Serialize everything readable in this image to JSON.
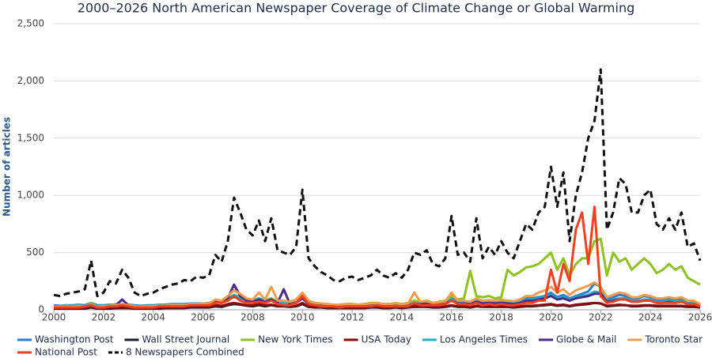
{
  "chart_data": {
    "type": "line",
    "title": "2000–2026 North American Newspaper Coverage of Climate Change or Global Warming",
    "y_label": "Number of articles",
    "xlim": [
      2000,
      2026
    ],
    "xticks": [
      2000,
      2002,
      2004,
      2006,
      2008,
      2010,
      2012,
      2014,
      2016,
      2018,
      2020,
      2022,
      2024,
      2026
    ],
    "ylim": [
      0,
      2500
    ],
    "yticks": [
      0,
      500,
      {
        "value": 1000,
        "label": "1,000"
      },
      {
        "value": 1500,
        "label": "1,500"
      },
      {
        "value": 2000,
        "label": "2,000"
      },
      {
        "value": 2500,
        "label": "2,500"
      }
    ],
    "grid": true,
    "legend": "bottom",
    "x": [
      2000,
      2000.25,
      2000.5,
      2000.75,
      2001,
      2001.25,
      2001.5,
      2001.75,
      2002,
      2002.25,
      2002.5,
      2002.75,
      2003,
      2003.25,
      2003.5,
      2003.75,
      2004,
      2004.25,
      2004.5,
      2004.75,
      2005,
      2005.25,
      2005.5,
      2005.75,
      2006,
      2006.25,
      2006.5,
      2006.75,
      2007,
      2007.25,
      2007.5,
      2007.75,
      2008,
      2008.25,
      2008.5,
      2008.75,
      2009,
      2009.25,
      2009.5,
      2009.75,
      2010,
      2010.25,
      2010.5,
      2010.75,
      2011,
      2011.25,
      2011.5,
      2011.75,
      2012,
      2012.25,
      2012.5,
      2012.75,
      2013,
      2013.25,
      2013.5,
      2013.75,
      2014,
      2014.25,
      2014.5,
      2014.75,
      2015,
      2015.25,
      2015.5,
      2015.75,
      2016,
      2016.25,
      2016.5,
      2016.75,
      2017,
      2017.25,
      2017.5,
      2017.75,
      2018,
      2018.25,
      2018.5,
      2018.75,
      2019,
      2019.25,
      2019.5,
      2019.75,
      2020,
      2020.25,
      2020.5,
      2020.75,
      2021,
      2021.25,
      2021.5,
      2021.75,
      2022,
      2022.25,
      2022.5,
      2022.75,
      2023,
      2023.25,
      2023.5,
      2023.75,
      2024,
      2024.25,
      2024.5,
      2024.75,
      2025,
      2025.25,
      2025.5,
      2025.75,
      2026
    ],
    "series": [
      {
        "name": "Washington Post",
        "color": "#2a7fd4",
        "values": [
          40,
          35,
          40,
          40,
          45,
          40,
          60,
          40,
          40,
          45,
          45,
          50,
          45,
          40,
          35,
          40,
          40,
          45,
          45,
          50,
          50,
          50,
          55,
          55,
          55,
          60,
          80,
          70,
          90,
          110,
          100,
          90,
          80,
          100,
          80,
          100,
          70,
          70,
          65,
          80,
          130,
          70,
          60,
          55,
          50,
          45,
          45,
          50,
          50,
          45,
          50,
          55,
          60,
          50,
          50,
          55,
          50,
          55,
          70,
          65,
          75,
          60,
          65,
          70,
          100,
          70,
          70,
          65,
          90,
          70,
          75,
          70,
          80,
          70,
          65,
          80,
          100,
          100,
          110,
          120,
          150,
          110,
          130,
          100,
          120,
          140,
          160,
          230,
          200,
          90,
          110,
          130,
          120,
          100,
          100,
          120,
          110,
          90,
          90,
          100,
          90,
          100,
          70,
          70,
          50
        ]
      },
      {
        "name": "Wall Street Journal",
        "color": "#1c1f33",
        "values": [
          10,
          10,
          10,
          10,
          10,
          10,
          20,
          10,
          10,
          10,
          15,
          15,
          15,
          10,
          10,
          10,
          10,
          10,
          15,
          15,
          15,
          15,
          20,
          20,
          20,
          20,
          30,
          25,
          40,
          50,
          45,
          35,
          30,
          40,
          30,
          40,
          30,
          30,
          25,
          30,
          50,
          25,
          20,
          20,
          15,
          15,
          15,
          15,
          15,
          15,
          15,
          20,
          20,
          15,
          15,
          20,
          15,
          20,
          25,
          25,
          25,
          20,
          20,
          25,
          35,
          25,
          25,
          20,
          30,
          25,
          25,
          25,
          25,
          25,
          20,
          25,
          30,
          30,
          35,
          40,
          45,
          35,
          40,
          30,
          40,
          45,
          50,
          60,
          55,
          30,
          35,
          40,
          40,
          30,
          30,
          35,
          35,
          30,
          30,
          30,
          30,
          30,
          25,
          25,
          20
        ]
      },
      {
        "name": "New York Times",
        "color": "#8dc21f",
        "values": [
          30,
          30,
          40,
          30,
          40,
          30,
          60,
          30,
          30,
          40,
          40,
          50,
          40,
          30,
          30,
          30,
          30,
          40,
          40,
          40,
          40,
          40,
          50,
          50,
          50,
          50,
          70,
          60,
          80,
          120,
          110,
          90,
          80,
          100,
          80,
          100,
          70,
          60,
          60,
          70,
          120,
          60,
          50,
          50,
          50,
          40,
          40,
          40,
          50,
          40,
          50,
          60,
          60,
          50,
          50,
          60,
          50,
          60,
          80,
          70,
          80,
          60,
          70,
          80,
          120,
          90,
          100,
          340,
          120,
          110,
          120,
          100,
          110,
          350,
          300,
          330,
          370,
          380,
          400,
          450,
          500,
          350,
          450,
          300,
          400,
          450,
          450,
          600,
          620,
          300,
          500,
          420,
          450,
          350,
          400,
          450,
          400,
          320,
          350,
          400,
          350,
          380,
          280,
          250,
          220
        ]
      },
      {
        "name": "USA Today",
        "color": "#8b0a0a",
        "values": [
          15,
          15,
          15,
          15,
          15,
          15,
          25,
          15,
          15,
          20,
          20,
          20,
          20,
          15,
          15,
          15,
          15,
          20,
          20,
          20,
          20,
          20,
          25,
          25,
          25,
          25,
          40,
          35,
          50,
          60,
          50,
          40,
          40,
          50,
          40,
          45,
          35,
          35,
          30,
          35,
          60,
          30,
          25,
          25,
          20,
          20,
          20,
          20,
          20,
          20,
          20,
          25,
          25,
          20,
          20,
          25,
          20,
          25,
          30,
          30,
          30,
          25,
          25,
          30,
          40,
          30,
          30,
          25,
          35,
          30,
          30,
          30,
          30,
          30,
          25,
          30,
          35,
          35,
          40,
          45,
          50,
          40,
          45,
          35,
          45,
          50,
          55,
          60,
          55,
          35,
          40,
          45,
          40,
          35,
          35,
          40,
          40,
          35,
          35,
          35,
          35,
          35,
          30,
          30,
          25
        ]
      },
      {
        "name": "Los Angeles Times",
        "color": "#1eb4c8",
        "values": [
          30,
          30,
          35,
          35,
          35,
          35,
          50,
          35,
          35,
          40,
          40,
          45,
          40,
          35,
          30,
          35,
          35,
          40,
          40,
          45,
          45,
          45,
          50,
          50,
          50,
          55,
          80,
          70,
          100,
          130,
          110,
          90,
          80,
          100,
          80,
          90,
          60,
          60,
          55,
          70,
          110,
          60,
          50,
          45,
          40,
          40,
          35,
          40,
          40,
          35,
          40,
          45,
          50,
          40,
          40,
          45,
          40,
          45,
          60,
          55,
          60,
          50,
          55,
          60,
          90,
          60,
          60,
          55,
          80,
          60,
          65,
          60,
          70,
          60,
          55,
          70,
          90,
          90,
          100,
          110,
          130,
          100,
          110,
          90,
          110,
          120,
          130,
          160,
          150,
          80,
          90,
          100,
          100,
          80,
          80,
          90,
          90,
          70,
          70,
          80,
          70,
          80,
          60,
          60,
          40
        ]
      },
      {
        "name": "Globe & Mail",
        "color": "#4b2a8a",
        "values": [
          20,
          20,
          20,
          20,
          25,
          25,
          35,
          20,
          25,
          30,
          40,
          90,
          40,
          25,
          20,
          25,
          25,
          30,
          30,
          35,
          35,
          35,
          40,
          40,
          45,
          45,
          70,
          60,
          100,
          220,
          120,
          80,
          70,
          90,
          70,
          90,
          60,
          180,
          50,
          60,
          100,
          50,
          40,
          40,
          35,
          30,
          30,
          35,
          35,
          30,
          35,
          40,
          40,
          35,
          35,
          40,
          35,
          40,
          50,
          50,
          55,
          45,
          50,
          55,
          80,
          55,
          55,
          50,
          70,
          55,
          60,
          55,
          60,
          55,
          50,
          60,
          80,
          80,
          90,
          100,
          120,
          90,
          100,
          80,
          100,
          110,
          120,
          140,
          140,
          70,
          80,
          90,
          90,
          70,
          70,
          80,
          80,
          60,
          60,
          70,
          60,
          70,
          50,
          50,
          35
        ]
      },
      {
        "name": "Toronto Star",
        "color": "#f39c4a",
        "values": [
          25,
          25,
          25,
          25,
          30,
          30,
          45,
          25,
          30,
          35,
          40,
          50,
          40,
          30,
          25,
          30,
          30,
          35,
          35,
          40,
          40,
          40,
          50,
          50,
          55,
          55,
          90,
          80,
          120,
          170,
          140,
          100,
          90,
          150,
          90,
          200,
          80,
          80,
          70,
          90,
          150,
          80,
          60,
          55,
          50,
          45,
          45,
          50,
          50,
          45,
          50,
          55,
          60,
          50,
          50,
          55,
          50,
          55,
          150,
          70,
          75,
          60,
          65,
          75,
          150,
          80,
          80,
          70,
          100,
          80,
          85,
          80,
          90,
          80,
          75,
          90,
          120,
          120,
          150,
          170,
          200,
          150,
          180,
          130,
          170,
          190,
          210,
          240,
          200,
          110,
          130,
          150,
          140,
          110,
          110,
          130,
          120,
          100,
          100,
          110,
          100,
          110,
          80,
          80,
          50
        ]
      },
      {
        "name": "National Post",
        "color": "#f0401e",
        "values": [
          20,
          20,
          20,
          20,
          20,
          30,
          40,
          20,
          20,
          30,
          30,
          40,
          30,
          20,
          20,
          20,
          20,
          30,
          30,
          30,
          30,
          30,
          40,
          40,
          40,
          40,
          60,
          60,
          80,
          120,
          80,
          60,
          60,
          70,
          60,
          80,
          50,
          40,
          40,
          60,
          120,
          50,
          40,
          30,
          30,
          30,
          20,
          30,
          30,
          30,
          30,
          30,
          40,
          30,
          30,
          30,
          30,
          30,
          60,
          40,
          40,
          40,
          40,
          50,
          80,
          50,
          50,
          40,
          60,
          40,
          50,
          40,
          50,
          40,
          40,
          50,
          60,
          60,
          80,
          80,
          350,
          150,
          400,
          250,
          700,
          850,
          400,
          900,
          120,
          60,
          70,
          90,
          90,
          70,
          70,
          80,
          80,
          60,
          60,
          60,
          60,
          70,
          50,
          50,
          30
        ]
      },
      {
        "name": "8 Newspapers Combined",
        "color": "#111111",
        "dashed": true,
        "values": [
          130,
          120,
          140,
          150,
          160,
          180,
          430,
          120,
          150,
          250,
          230,
          350,
          280,
          150,
          120,
          140,
          150,
          180,
          200,
          220,
          230,
          260,
          250,
          290,
          280,
          300,
          480,
          420,
          600,
          980,
          850,
          700,
          650,
          780,
          600,
          800,
          520,
          500,
          480,
          550,
          1050,
          450,
          380,
          330,
          300,
          260,
          250,
          280,
          290,
          260,
          280,
          300,
          350,
          300,
          280,
          320,
          280,
          350,
          500,
          480,
          520,
          400,
          380,
          450,
          820,
          480,
          500,
          420,
          800,
          450,
          550,
          480,
          600,
          500,
          450,
          600,
          750,
          700,
          850,
          900,
          1250,
          900,
          1200,
          600,
          1000,
          1200,
          1500,
          1650,
          2100,
          700,
          850,
          1150,
          1100,
          850,
          850,
          1000,
          1050,
          750,
          700,
          800,
          700,
          850,
          550,
          580,
          430
        ]
      }
    ]
  }
}
